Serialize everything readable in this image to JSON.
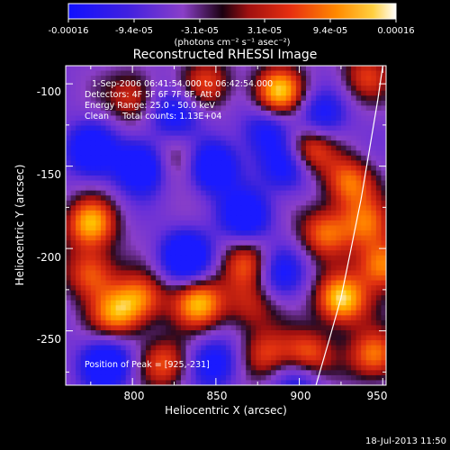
{
  "colorbar": {
    "ticks": [
      "-0.00016",
      "-9.4e-05",
      "-3.1e-05",
      "3.1e-05",
      "9.4e-05",
      "0.00016"
    ],
    "unit_label": "(photons cm⁻² s⁻¹ asec⁻²)",
    "range": [
      -0.00016,
      0.00016
    ]
  },
  "chart_data": {
    "type": "heatmap",
    "title": "Reconstructed RHESSI Image",
    "xlabel": "Heliocentric X (arcsec)",
    "ylabel": "Heliocentric Y (arcsec)",
    "xlim": [
      760,
      952
    ],
    "ylim": [
      -283,
      -89
    ],
    "xticks": [
      800,
      850,
      900,
      950
    ],
    "yticks": [
      -100,
      -150,
      -200,
      -250
    ],
    "info_lines": [
      "1-Sep-2006 06:41:54.000 to 06:42:54.000",
      "Detectors: 4F 5F 6F 7F 8F, Att 0",
      "Energy Range: 25.0 - 50.0 keV",
      "Clean     Total counts: 1.13E+04"
    ],
    "peak_label": "Position of Peak = [925,-231]",
    "peak": [
      925,
      -231
    ],
    "limb": [
      [
        910,
        -283
      ],
      [
        918,
        -255
      ],
      [
        925,
        -230
      ],
      [
        931,
        -200
      ],
      [
        937,
        -170
      ],
      [
        942,
        -140
      ],
      [
        947,
        -110
      ],
      [
        950,
        -89
      ]
    ],
    "colormap": [
      "#1a1aff",
      "#3020e0",
      "#6a30d8",
      "#8a3fc8",
      "#2a0a20",
      "#a01010",
      "#e03010",
      "#ff7a00",
      "#ffc000",
      "#ffffff"
    ],
    "peaks": [
      {
        "x": 925,
        "y": -231,
        "v": 1.0
      },
      {
        "x": 950,
        "y": -210,
        "v": 0.8
      },
      {
        "x": 905,
        "y": -265,
        "v": 0.7
      },
      {
        "x": 945,
        "y": -265,
        "v": 0.75
      },
      {
        "x": 915,
        "y": -190,
        "v": 0.65
      },
      {
        "x": 940,
        "y": -185,
        "v": 0.6
      },
      {
        "x": 930,
        "y": -160,
        "v": 0.7
      },
      {
        "x": 905,
        "y": -140,
        "v": 0.75
      },
      {
        "x": 888,
        "y": -105,
        "v": 0.9
      },
      {
        "x": 845,
        "y": -100,
        "v": 0.55
      },
      {
        "x": 940,
        "y": -95,
        "v": 0.5
      },
      {
        "x": 775,
        "y": -185,
        "v": 0.85
      },
      {
        "x": 775,
        "y": -215,
        "v": 0.65
      },
      {
        "x": 790,
        "y": -240,
        "v": 0.7
      },
      {
        "x": 805,
        "y": -230,
        "v": 0.65
      },
      {
        "x": 840,
        "y": -233,
        "v": 0.85
      },
      {
        "x": 820,
        "y": -270,
        "v": 0.6
      },
      {
        "x": 870,
        "y": -210,
        "v": 0.6
      },
      {
        "x": 880,
        "y": -265,
        "v": 0.55
      },
      {
        "x": 800,
        "y": -108,
        "v": 0.55
      },
      {
        "x": 828,
        "y": -145,
        "v": 0.45
      },
      {
        "x": 870,
        "y": -235,
        "v": 0.45
      },
      {
        "x": 805,
        "y": -150,
        "v": -0.85
      },
      {
        "x": 848,
        "y": -150,
        "v": -0.85
      },
      {
        "x": 832,
        "y": -205,
        "v": -0.8
      },
      {
        "x": 868,
        "y": -180,
        "v": -0.7
      },
      {
        "x": 775,
        "y": -140,
        "v": -0.7
      },
      {
        "x": 785,
        "y": -270,
        "v": -0.75
      },
      {
        "x": 850,
        "y": -270,
        "v": -0.6
      },
      {
        "x": 893,
        "y": -150,
        "v": -0.65
      },
      {
        "x": 888,
        "y": -215,
        "v": -0.55
      },
      {
        "x": 900,
        "y": -280,
        "v": -0.5
      },
      {
        "x": 825,
        "y": -118,
        "v": -0.6
      },
      {
        "x": 880,
        "y": -128,
        "v": -0.5
      },
      {
        "x": 913,
        "y": -120,
        "v": -0.55
      }
    ]
  },
  "footer": {
    "timestamp": "18-Jul-2013 11:50"
  }
}
